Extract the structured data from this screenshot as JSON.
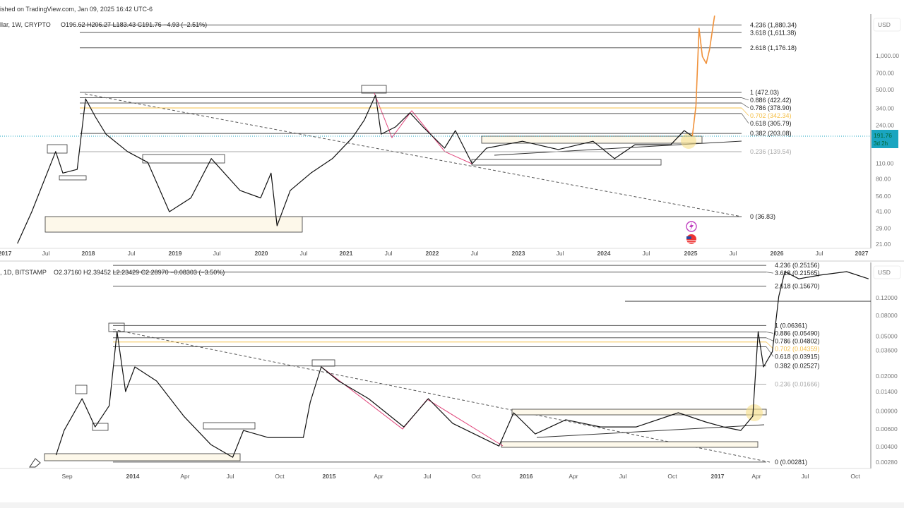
{
  "header": {
    "published": "ished on TradingView.com, Jan 09, 2025 16:42 UTC-6",
    "top_symbol": "llar, 1W, CRYPTO",
    "top_ohlc": "O196.62 H206.27 L183.43 C191.76 −4.93 (−2.51%)",
    "bottom_symbol": ", 1D, BITSTAMP",
    "bottom_ohlc": "O2.37160 H2.39452 L2.23429 C2.28970 −0.08303 (−3.50%)"
  },
  "colors": {
    "price": "#111111",
    "projection": "#f0913a",
    "golden": "#f5c04a",
    "fib": "#555555",
    "fib_faded": "#aaaaaa",
    "last_price_bg": "#1aa5c0",
    "pink_line": "#e0447a",
    "highlight": "#f7e08a"
  },
  "icons": [
    "lightning-event-icon",
    "us-flag-icon"
  ],
  "chart_data": [
    {
      "type": "line",
      "scale": "log",
      "currency": "USD",
      "last_price": {
        "value": "191.76",
        "countdown": "3d 2h"
      },
      "x_ticks": [
        "2017",
        "Jul",
        "2018",
        "Jul",
        "2019",
        "Jul",
        "2020",
        "Jul",
        "2021",
        "Jul",
        "2022",
        "Jul",
        "2023",
        "Jul",
        "2024",
        "Jul",
        "2025",
        "Jul",
        "2026",
        "Jul",
        "2027"
      ],
      "y_ticks": [
        "1,000.00",
        "700.00",
        "500.00",
        "340.00",
        "240.00",
        "110.00",
        "80.00",
        "56.00",
        "41.00",
        "29.00",
        "21.00"
      ],
      "y_tick_values": [
        1000,
        700,
        500,
        340,
        240,
        110,
        80,
        56,
        41,
        29,
        21
      ],
      "fib_levels": [
        {
          "label": "4.236 (1,880.34)",
          "price": 1880.34
        },
        {
          "label": "3.618 (1,611.38)",
          "price": 1611.38
        },
        {
          "label": "2.618 (1,176.18)",
          "price": 1176.18
        },
        {
          "label": "1 (472.03)",
          "price": 472.03
        },
        {
          "label": "0.886 (422.42)",
          "price": 422.42
        },
        {
          "label": "0.786 (378.90)",
          "price": 378.9
        },
        {
          "label": "0.702 (342.34)",
          "price": 342.34,
          "golden": true
        },
        {
          "label": "0.618 (305.79)",
          "price": 305.79
        },
        {
          "label": "0.382 (203.08)",
          "price": 203.08
        },
        {
          "label": "0.236 (139.54)",
          "price": 139.54,
          "faded": true
        },
        {
          "label": "0 (36.83)",
          "price": 36.83
        }
      ],
      "series": [
        {
          "points": [
            [
              "2017-03-05",
              21.2
            ],
            [
              "2017-05-05",
              40.7
            ],
            [
              "2017-08-15",
              140
            ],
            [
              "2017-09-15",
              90
            ],
            [
              "2017-11-15",
              97
            ],
            [
              "2017-12-20",
              413
            ],
            [
              "2018-01-30",
              288
            ],
            [
              "2018-03-15",
              200
            ],
            [
              "2018-06-15",
              140
            ],
            [
              "2018-09-10",
              112
            ],
            [
              "2018-12-10",
              40.7
            ],
            [
              "2019-03-10",
              54
            ],
            [
              "2019-06-05",
              121
            ],
            [
              "2019-10-05",
              63
            ],
            [
              "2020-01-01",
              54
            ],
            [
              "2020-02-15",
              90
            ],
            [
              "2020-03-10",
              30.5
            ],
            [
              "2020-05-05",
              63
            ],
            [
              "2020-08-01",
              90
            ],
            [
              "2020-11-01",
              121
            ],
            [
              "2021-01-25",
              186
            ],
            [
              "2021-03-15",
              268
            ],
            [
              "2021-05-01",
              445
            ],
            [
              "2021-05-25",
              200
            ],
            [
              "2021-07-25",
              232
            ],
            [
              "2021-09-25",
              310
            ],
            [
              "2021-11-20",
              232
            ],
            [
              "2022-02-20",
              150
            ],
            [
              "2022-04-05",
              215
            ],
            [
              "2022-06-15",
              109
            ],
            [
              "2022-08-15",
              150
            ],
            [
              "2023-01-15",
              173
            ],
            [
              "2023-06-15",
              146
            ],
            [
              "2023-11-10",
              173
            ],
            [
              "2024-02-10",
              121
            ],
            [
              "2024-05-05",
              161
            ],
            [
              "2024-10-05",
              161
            ],
            [
              "2024-12-01",
              215
            ],
            [
              "2025-01-05",
              191.76
            ]
          ]
        },
        {
          "projection": true,
          "points": [
            [
              "2025-01-05",
              191.76
            ],
            [
              "2025-01-20",
              357
            ],
            [
              "2025-02-03",
              1758
            ],
            [
              "2025-02-17",
              986
            ],
            [
              "2025-03-03",
              853
            ],
            [
              "2025-03-17",
              1139
            ],
            [
              "2025-04-08",
              2280
            ]
          ]
        }
      ]
    },
    {
      "type": "line",
      "scale": "log",
      "currency": "USD",
      "x_ticks": [
        "Sep",
        "2014",
        "Apr",
        "Jul",
        "Oct",
        "2015",
        "Apr",
        "Jul",
        "Oct",
        "2016",
        "Apr",
        "Jul",
        "Oct",
        "2017",
        "Apr",
        "Jul",
        "Oct"
      ],
      "y_ticks": [
        "0.12000",
        "0.08000",
        "0.05000",
        "0.03600",
        "0.02000",
        "0.01400",
        "0.00900",
        "0.00600",
        "0.00400",
        "0.00280"
      ],
      "y_tick_values": [
        0.12,
        0.08,
        0.05,
        0.036,
        0.02,
        0.014,
        0.009,
        0.006,
        0.004,
        0.0028
      ],
      "fib_levels": [
        {
          "label": "4.236 (0.25156)",
          "price": 0.25156
        },
        {
          "label": "3.618 (0.21565)",
          "price": 0.21565
        },
        {
          "label": "2.618 (0.15670)",
          "price": 0.1567
        },
        {
          "label": "1 (0.06361)",
          "price": 0.06361
        },
        {
          "label": "0.886 (0.05490)",
          "price": 0.0549
        },
        {
          "label": "0.786 (0.04802)",
          "price": 0.04802
        },
        {
          "label": "0.702 (0.04359)",
          "price": 0.04359,
          "golden": true
        },
        {
          "label": "0.618 (0.03915)",
          "price": 0.03915
        },
        {
          "label": "0.382 (0.02527)",
          "price": 0.02527
        },
        {
          "label": "0.236 (0.01666)",
          "price": 0.01666,
          "faded": true
        },
        {
          "label": "0 (0.00281)",
          "price": 0.00281
        }
      ],
      "series": [
        {
          "points": [
            [
              "2013-08-10",
              0.00329
            ],
            [
              "2013-08-25",
              0.00578
            ],
            [
              "2013-09-28",
              0.01197
            ],
            [
              "2013-10-22",
              0.00627
            ],
            [
              "2013-11-18",
              0.01019
            ],
            [
              "2013-12-02",
              0.0553
            ],
            [
              "2013-12-18",
              0.01406
            ],
            [
              "2014-01-05",
              0.0247
            ],
            [
              "2014-02-15",
              0.0179
            ],
            [
              "2014-04-05",
              0.008
            ],
            [
              "2014-05-25",
              0.00419
            ],
            [
              "2014-07-05",
              0.00313
            ],
            [
              "2014-07-25",
              0.00578
            ],
            [
              "2014-09-10",
              0.00492
            ],
            [
              "2014-11-15",
              0.00492
            ],
            [
              "2014-11-28",
              0.01104
            ],
            [
              "2014-12-18",
              0.0247
            ],
            [
              "2015-01-20",
              0.0179
            ],
            [
              "2015-03-15",
              0.01197
            ],
            [
              "2015-05-20",
              0.00627
            ],
            [
              "2015-07-05",
              0.01197
            ],
            [
              "2015-08-20",
              0.00679
            ],
            [
              "2015-11-15",
              0.00405
            ],
            [
              "2015-12-12",
              0.00867
            ],
            [
              "2016-01-22",
              0.00533
            ],
            [
              "2016-03-18",
              0.00738
            ],
            [
              "2016-05-22",
              0.00627
            ],
            [
              "2016-07-28",
              0.00627
            ],
            [
              "2016-10-15",
              0.00867
            ],
            [
              "2016-12-05",
              0.00703
            ],
            [
              "2017-01-08",
              0.00627
            ],
            [
              "2017-02-10",
              0.00578
            ],
            [
              "2017-03-02",
              0.008
            ],
            [
              "2017-03-12",
              0.0553
            ],
            [
              "2017-03-22",
              0.0247
            ],
            [
              "2017-04-08",
              0.035
            ],
            [
              "2017-04-20",
              0.124
            ],
            [
              "2017-05-01",
              0.218
            ],
            [
              "2017-05-27",
              0.185
            ],
            [
              "2017-07-05",
              0.201
            ],
            [
              "2017-08-25",
              0.218
            ],
            [
              "2017-10-05",
              0.185
            ]
          ]
        }
      ]
    }
  ]
}
